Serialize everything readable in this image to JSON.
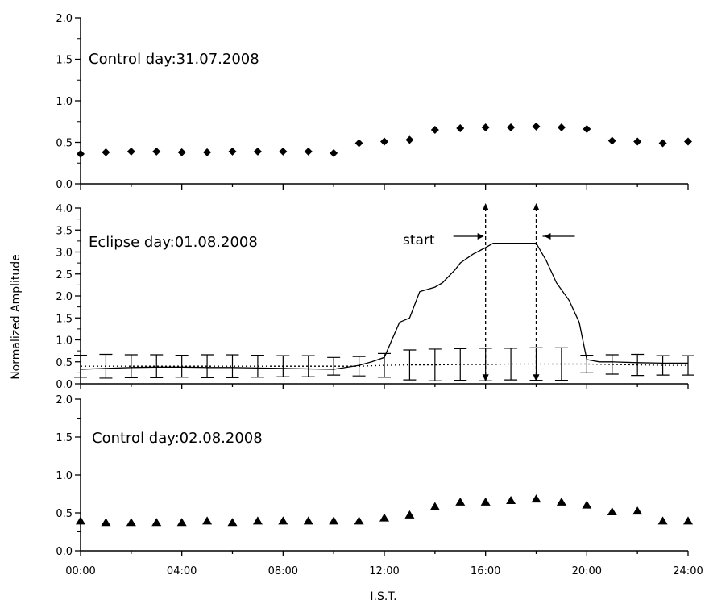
{
  "chart_data": {
    "type": "scatter",
    "ylabel": "Normalized Amplitude",
    "xlabel": "I.S.T.",
    "x_ticks": [
      "00:00",
      "04:00",
      "08:00",
      "12:00",
      "16:00",
      "20:00",
      "24:00"
    ],
    "x_range_hours": [
      0,
      24
    ],
    "grid": false,
    "panels": [
      {
        "title": "Control day:31.07.2008",
        "ylim": [
          0,
          2.0
        ],
        "yticks": [
          "0.0",
          "0.5",
          "1.0",
          "1.5",
          "2.0"
        ],
        "series": [
          {
            "marker": "diamond",
            "x": [
              0,
              1,
              2,
              3,
              4,
              5,
              6,
              7,
              8,
              9,
              10,
              11,
              12,
              13,
              14,
              15,
              16,
              17,
              18,
              19,
              20,
              21,
              22,
              23,
              24
            ],
            "y": [
              0.36,
              0.38,
              0.39,
              0.39,
              0.38,
              0.38,
              0.39,
              0.39,
              0.39,
              0.39,
              0.37,
              0.49,
              0.51,
              0.53,
              0.65,
              0.67,
              0.68,
              0.68,
              0.69,
              0.68,
              0.66,
              0.52,
              0.51,
              0.49,
              0.51
            ]
          }
        ]
      },
      {
        "title": "Eclipse day:01.08.2008",
        "ylim": [
          0,
          4.0
        ],
        "yticks": [
          "0.0",
          "0.5",
          "1.0",
          "1.5",
          "2.0",
          "2.5",
          "3.0",
          "3.5",
          "4.0"
        ],
        "series": [
          {
            "style": "solid-line",
            "x": [
              0,
              1,
              2,
              3,
              4,
              5,
              6,
              7,
              8,
              9,
              10,
              11,
              11.5,
              12,
              12.3,
              12.6,
              13,
              13.2,
              13.4,
              14,
              14.3,
              14.8,
              15,
              15.5,
              16,
              16.3,
              16.8,
              17.2,
              17.6,
              18,
              18.4,
              18.8,
              19.3,
              19.7,
              20,
              20.5,
              21,
              22,
              23,
              24
            ],
            "y": [
              0.33,
              0.35,
              0.37,
              0.38,
              0.38,
              0.37,
              0.37,
              0.36,
              0.35,
              0.34,
              0.33,
              0.42,
              0.5,
              0.6,
              1.0,
              1.4,
              1.5,
              1.8,
              2.1,
              2.2,
              2.3,
              2.6,
              2.75,
              2.95,
              3.1,
              3.2,
              3.2,
              3.2,
              3.2,
              3.2,
              2.8,
              2.3,
              1.9,
              1.4,
              0.55,
              0.5,
              0.5,
              0.48,
              0.47,
              0.47
            ]
          },
          {
            "style": "dotted-line-with-error-bars",
            "x": [
              0,
              1,
              2,
              3,
              4,
              5,
              6,
              7,
              8,
              9,
              10,
              11,
              12,
              13,
              14,
              15,
              16,
              17,
              18,
              19,
              20,
              21,
              22,
              23,
              24
            ],
            "y": [
              0.4,
              0.4,
              0.4,
              0.4,
              0.4,
              0.4,
              0.4,
              0.4,
              0.4,
              0.4,
              0.4,
              0.4,
              0.42,
              0.43,
              0.43,
              0.44,
              0.44,
              0.45,
              0.45,
              0.45,
              0.45,
              0.44,
              0.43,
              0.42,
              0.42
            ],
            "err": [
              0.25,
              0.27,
              0.26,
              0.26,
              0.25,
              0.26,
              0.26,
              0.25,
              0.24,
              0.24,
              0.2,
              0.22,
              0.27,
              0.34,
              0.36,
              0.36,
              0.37,
              0.36,
              0.37,
              0.37,
              0.2,
              0.22,
              0.24,
              0.22,
              0.22
            ]
          }
        ],
        "annotations": {
          "start_label": "start",
          "markers_at_hours": [
            16,
            18
          ]
        }
      },
      {
        "title": "Control day:02.08.2008",
        "ylim": [
          0,
          2.0
        ],
        "yticks": [
          "0.0",
          "0.5",
          "1.0",
          "1.5",
          "2.0"
        ],
        "series": [
          {
            "marker": "triangle",
            "x": [
              0,
              1,
              2,
              3,
              4,
              5,
              6,
              7,
              8,
              9,
              10,
              11,
              12,
              13,
              14,
              15,
              16,
              17,
              18,
              19,
              20,
              21,
              22,
              23,
              24
            ],
            "y": [
              0.39,
              0.37,
              0.37,
              0.37,
              0.37,
              0.39,
              0.37,
              0.39,
              0.39,
              0.39,
              0.39,
              0.39,
              0.43,
              0.47,
              0.58,
              0.64,
              0.64,
              0.66,
              0.68,
              0.64,
              0.6,
              0.51,
              0.52,
              0.39,
              0.39
            ]
          }
        ]
      }
    ]
  }
}
